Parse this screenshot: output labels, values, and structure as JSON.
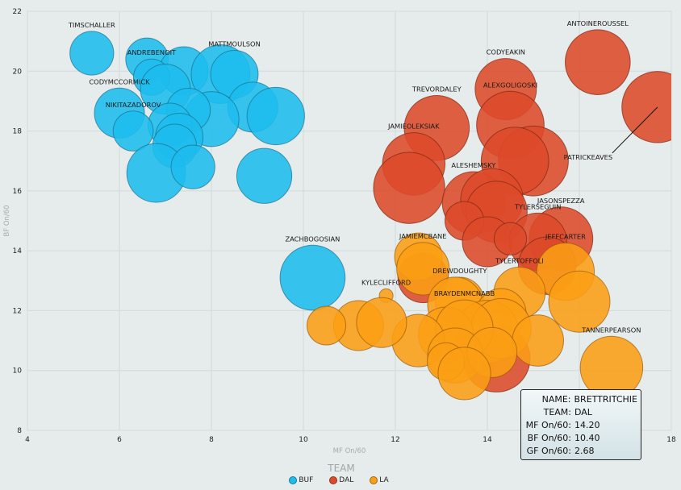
{
  "chart_data": {
    "type": "scatter",
    "subtype": "bubble",
    "title": "",
    "xlabel": "MF On/60",
    "ylabel": "BF On/60",
    "size_label": "GF On/60",
    "xlim": [
      4,
      18
    ],
    "ylim": [
      8,
      22
    ],
    "xticks": [
      "4",
      "6",
      "8",
      "10",
      "12",
      "14",
      "16",
      "18"
    ],
    "yticks": [
      "8",
      "10",
      "12",
      "14",
      "16",
      "18",
      "20",
      "22"
    ],
    "grid": true,
    "legend": {
      "title": "TEAM",
      "placement": "bottom-center"
    },
    "series": [
      {
        "name": "BUF",
        "color": "#1dbdee",
        "points": [
          {
            "name": "TIMSCHALLER",
            "x": 5.4,
            "y": 20.6,
            "size": 1.75,
            "label": true
          },
          {
            "name": "",
            "x": 6.6,
            "y": 20.4,
            "size": 1.7
          },
          {
            "name": "",
            "x": 7.4,
            "y": 20.0,
            "size": 1.95
          },
          {
            "name": "ANDREBENOIT",
            "x": 6.7,
            "y": 19.8,
            "size": 1.45,
            "label": true
          },
          {
            "name": "",
            "x": 7.0,
            "y": 19.4,
            "size": 2.0
          },
          {
            "name": "",
            "x": 8.2,
            "y": 19.9,
            "size": 2.35
          },
          {
            "name": "MATTMOULSON",
            "x": 8.5,
            "y": 19.9,
            "size": 1.9,
            "label": true
          },
          {
            "name": "",
            "x": 8.9,
            "y": 18.8,
            "size": 2.0
          },
          {
            "name": "CODYMCCORMICK",
            "x": 6.0,
            "y": 18.6,
            "size": 2.0,
            "label": true
          },
          {
            "name": "",
            "x": 8.0,
            "y": 18.4,
            "size": 2.2
          },
          {
            "name": "",
            "x": 9.4,
            "y": 18.5,
            "size": 2.3
          },
          {
            "name": "",
            "x": 7.5,
            "y": 18.7,
            "size": 1.75
          },
          {
            "name": "",
            "x": 7.1,
            "y": 18.2,
            "size": 1.75
          },
          {
            "name": "",
            "x": 7.3,
            "y": 17.8,
            "size": 1.9
          },
          {
            "name": "NIKITAZADOROV",
            "x": 6.3,
            "y": 18.0,
            "size": 1.6,
            "label": true
          },
          {
            "name": "",
            "x": 7.2,
            "y": 17.5,
            "size": 1.75
          },
          {
            "name": "",
            "x": 6.8,
            "y": 16.6,
            "size": 2.35
          },
          {
            "name": "",
            "x": 7.6,
            "y": 16.8,
            "size": 1.75
          },
          {
            "name": "",
            "x": 9.15,
            "y": 16.5,
            "size": 2.2
          },
          {
            "name": "ZACHBOGOSIAN",
            "x": 10.2,
            "y": 13.1,
            "size": 2.6,
            "label": true
          }
        ]
      },
      {
        "name": "DAL",
        "color": "#dd4a2a",
        "points": [
          {
            "name": "ANTOINEROUSSEL",
            "x": 16.4,
            "y": 20.3,
            "size": 2.6,
            "label": true
          },
          {
            "name": "PATRICKEAVES",
            "x": 17.7,
            "y": 18.8,
            "size": 2.85,
            "label": true,
            "leader": true
          },
          {
            "name": "CODYEAKIN",
            "x": 14.4,
            "y": 19.4,
            "size": 2.45,
            "label": true
          },
          {
            "name": "TREVORDALEY",
            "x": 12.9,
            "y": 18.1,
            "size": 2.6,
            "label": true
          },
          {
            "name": "ALEXGOLIGOSKI",
            "x": 14.5,
            "y": 18.2,
            "size": 2.7,
            "label": true
          },
          {
            "name": "",
            "x": 15.0,
            "y": 17.0,
            "size": 2.8
          },
          {
            "name": "",
            "x": 14.6,
            "y": 17.0,
            "size": 2.7
          },
          {
            "name": "JAMIEOLEKSIAK",
            "x": 12.4,
            "y": 16.9,
            "size": 2.5,
            "label": true
          },
          {
            "name": "",
            "x": 12.3,
            "y": 16.1,
            "size": 2.85
          },
          {
            "name": "ALESHEMSKY",
            "x": 13.7,
            "y": 15.6,
            "size": 2.5,
            "label": true
          },
          {
            "name": "",
            "x": 14.1,
            "y": 15.7,
            "size": 2.5
          },
          {
            "name": "",
            "x": 14.2,
            "y": 15.3,
            "size": 2.45
          },
          {
            "name": "",
            "x": 13.5,
            "y": 15.0,
            "size": 1.55
          },
          {
            "name": "",
            "x": 14.0,
            "y": 14.3,
            "size": 2.0
          },
          {
            "name": "JASONSPEZZA",
            "x": 15.6,
            "y": 14.4,
            "size": 2.55,
            "label": true
          },
          {
            "name": "TYLERSEGUIN",
            "x": 15.1,
            "y": 14.3,
            "size": 2.3,
            "label": true
          },
          {
            "name": "",
            "x": 14.5,
            "y": 14.4,
            "size": 1.3
          },
          {
            "name": "",
            "x": 15.3,
            "y": 13.5,
            "size": 2.3
          },
          {
            "name": "",
            "x": 12.6,
            "y": 13.1,
            "size": 2.0
          },
          {
            "name": "BRETTRITCHIE",
            "x": 14.2,
            "y": 10.4,
            "size": 2.68
          }
        ]
      },
      {
        "name": "LA",
        "color": "#fa9e14",
        "points": [
          {
            "name": "",
            "x": 12.5,
            "y": 13.8,
            "size": 1.9
          },
          {
            "name": "JAMIEMCBANE",
            "x": 12.6,
            "y": 13.4,
            "size": 2.1,
            "label": true
          },
          {
            "name": "JEFFCARTER",
            "x": 15.7,
            "y": 13.3,
            "size": 2.3,
            "label": true
          },
          {
            "name": "",
            "x": 16.0,
            "y": 12.3,
            "size": 2.45
          },
          {
            "name": "TYLERTOFFOLI",
            "x": 14.7,
            "y": 12.6,
            "size": 2.05,
            "label": true
          },
          {
            "name": "DREWDOUGHTY",
            "x": 13.4,
            "y": 12.3,
            "size": 1.95,
            "label": true
          },
          {
            "name": "",
            "x": 13.3,
            "y": 12.2,
            "size": 2.2
          },
          {
            "name": "",
            "x": 14.3,
            "y": 11.9,
            "size": 2.0
          },
          {
            "name": "",
            "x": 14.0,
            "y": 11.3,
            "size": 2.5
          },
          {
            "name": "",
            "x": 14.3,
            "y": 11.4,
            "size": 2.4
          },
          {
            "name": "",
            "x": 15.1,
            "y": 11.0,
            "size": 2.05
          },
          {
            "name": "",
            "x": 13.1,
            "y": 11.2,
            "size": 2.2
          },
          {
            "name": "BRAYDENMCNABB",
            "x": 13.5,
            "y": 11.4,
            "size": 2.3,
            "label": true
          },
          {
            "name": "",
            "x": 12.5,
            "y": 11.0,
            "size": 2.1
          },
          {
            "name": "",
            "x": 13.3,
            "y": 10.5,
            "size": 2.2
          },
          {
            "name": "",
            "x": 13.1,
            "y": 10.3,
            "size": 1.5
          },
          {
            "name": "",
            "x": 14.1,
            "y": 10.6,
            "size": 2.0
          },
          {
            "name": "",
            "x": 13.5,
            "y": 9.9,
            "size": 2.1
          },
          {
            "name": "",
            "x": 11.2,
            "y": 11.5,
            "size": 2.0
          },
          {
            "name": "KYLECLIFFORD",
            "x": 11.8,
            "y": 12.5,
            "size": 0.55,
            "label": true
          },
          {
            "name": "",
            "x": 11.7,
            "y": 11.6,
            "size": 2.0
          },
          {
            "name": "",
            "x": 10.5,
            "y": 11.5,
            "size": 1.55
          },
          {
            "name": "TANNERPEARSON",
            "x": 16.7,
            "y": 10.1,
            "size": 2.5,
            "label": true
          }
        ]
      }
    ]
  },
  "tooltip": {
    "rows": [
      {
        "key": "NAME:",
        "value": "BRETTRITCHIE"
      },
      {
        "key": "TEAM:",
        "value": "DAL"
      },
      {
        "key": "MF On/60:",
        "value": "14.20"
      },
      {
        "key": "BF On/60:",
        "value": "10.40"
      },
      {
        "key": "GF On/60:",
        "value": "2.68"
      }
    ]
  },
  "legend": {
    "title": "TEAM",
    "items": [
      {
        "label": "BUF",
        "color": "#1dbdee"
      },
      {
        "label": "DAL",
        "color": "#dd4a2a"
      },
      {
        "label": "LA",
        "color": "#fa9e14"
      }
    ]
  }
}
